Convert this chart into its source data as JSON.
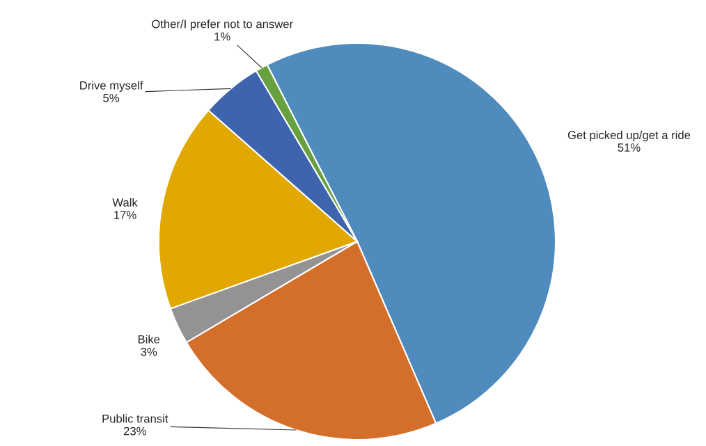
{
  "chart_data": {
    "type": "pie",
    "categories": [
      "Get picked up/get a ride",
      "Public transit",
      "Bike",
      "Walk",
      "Drive myself",
      "Other/I prefer not to answer"
    ],
    "values": [
      51,
      23,
      3,
      17,
      5,
      1
    ],
    "value_labels": [
      "51%",
      "23%",
      "3%",
      "17%",
      "5%",
      "1%"
    ],
    "colors": [
      "#4f8bbd",
      "#d46e2b",
      "#939393",
      "#e0a800",
      "#3d64ad",
      "#66a03f"
    ],
    "legend": false
  }
}
